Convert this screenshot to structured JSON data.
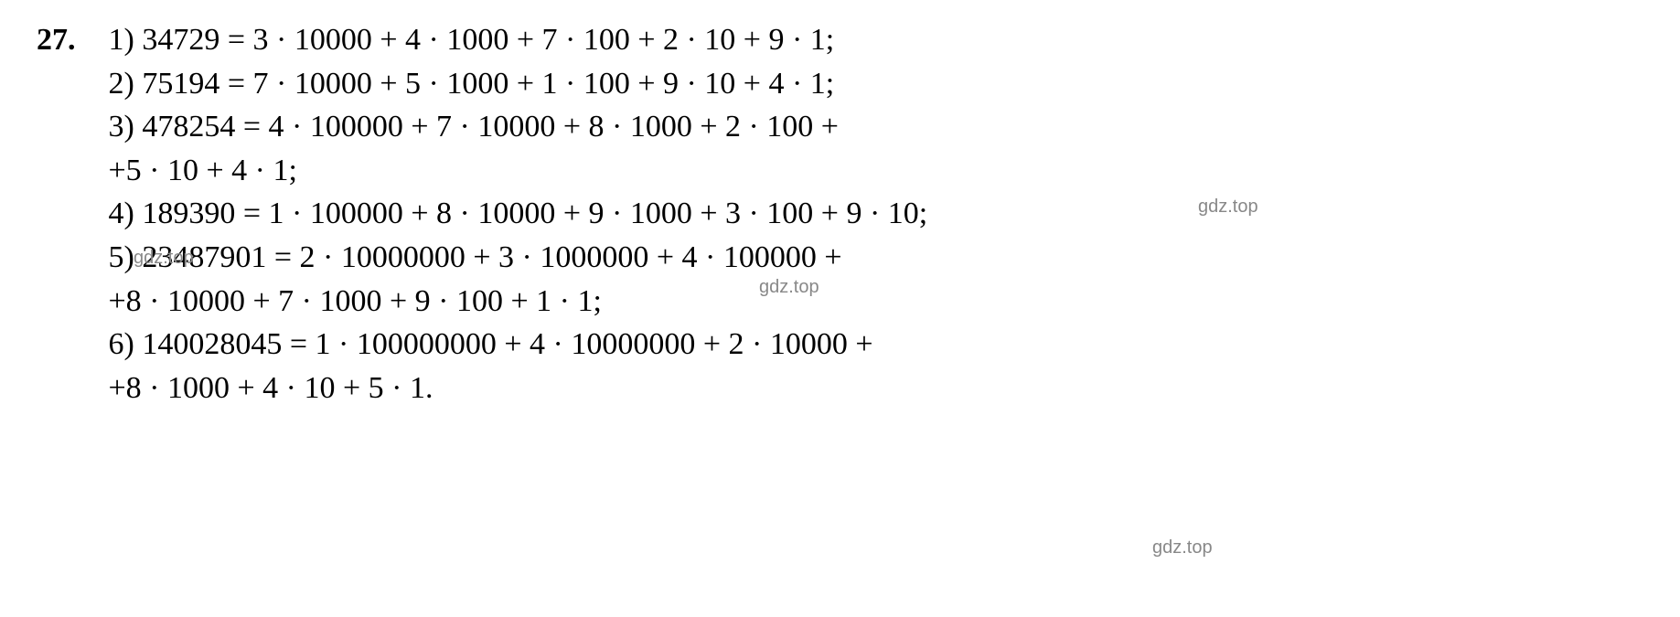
{
  "problem": {
    "number": "27.",
    "lines": [
      "1) 34729 = 3 · 10000 + 4 · 1000 + 7 · 100 + 2 · 10 + 9 · 1;",
      "2) 75194 = 7 · 10000 + 5 · 1000 + 1 · 100 + 9 · 10 + 4 · 1;",
      "3) 478254 = 4 · 100000 + 7 · 10000 + 8 · 1000 + 2 · 100 +",
      "+5 · 10 + 4 · 1;",
      "4) 189390 = 1 · 100000 + 8 · 10000 + 9 · 1000 + 3 · 100 + 9 · 10;",
      "5) 23487901 = 2 · 10000000 + 3 · 1000000 + 4 · 100000 +",
      "+8 · 10000 + 7 · 1000 + 9 · 100 + 1 · 1;",
      "6) 140028045 = 1 · 100000000 + 4 · 10000000 + 2 · 10000 +",
      "+8 · 1000 + 4 · 10 + 5 · 1."
    ]
  },
  "watermarks": {
    "text": "gdz.top"
  },
  "styling": {
    "font_family": "Times New Roman",
    "font_size_pt": 34,
    "text_color": "#000000",
    "background_color": "#ffffff",
    "watermark_color": "#888888",
    "watermark_font_size_pt": 20,
    "line_height": 1.4,
    "problem_number_bold": true
  }
}
